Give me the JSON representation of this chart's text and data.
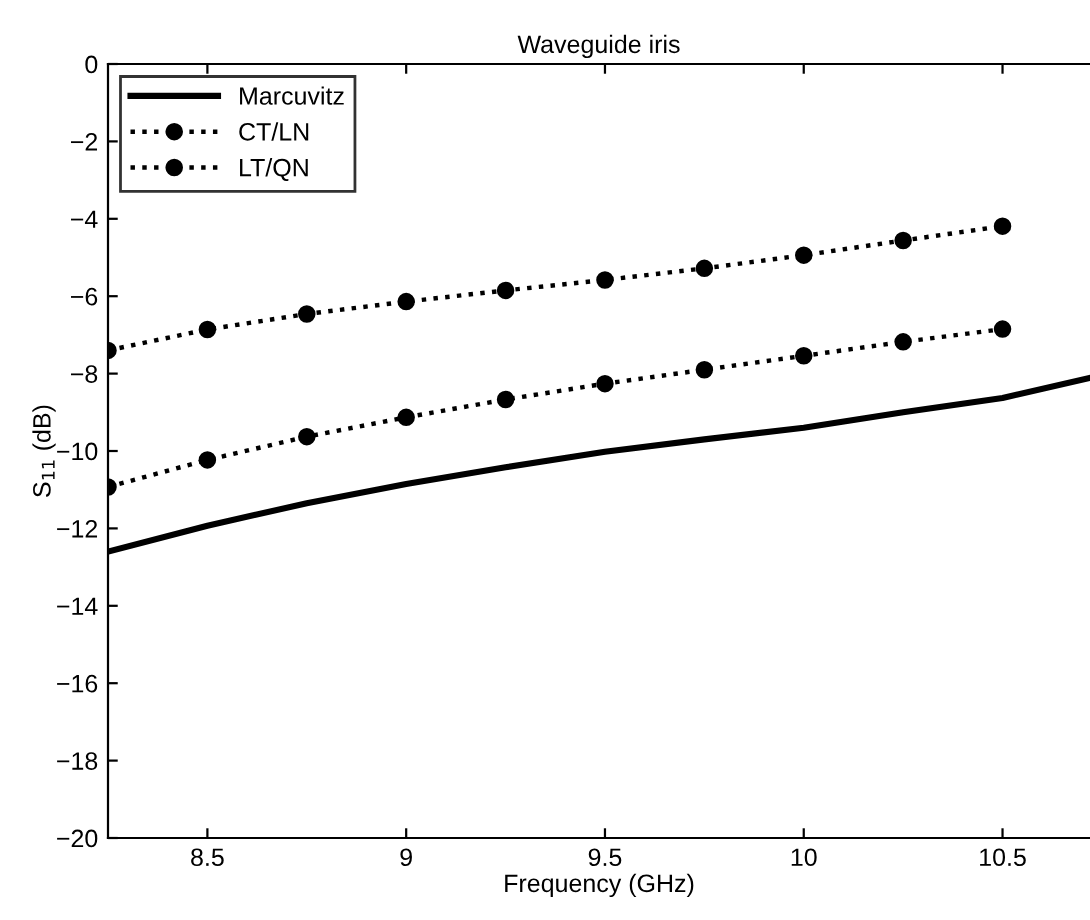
{
  "chart_data": {
    "type": "line",
    "title": "Waveguide iris",
    "xlabel": "Frequency (GHz)",
    "ylabel": "S$_{11}$ (dB)",
    "xlim": [
      8.25,
      10.72
    ],
    "xticks": [
      8.5,
      9,
      9.5,
      10,
      10.5
    ],
    "ylim": [
      -20,
      0
    ],
    "yticks": [
      -20,
      -18,
      -16,
      -14,
      -12,
      -10,
      -8,
      -6,
      -4,
      -2,
      0
    ],
    "grid": false,
    "legend": "top left",
    "series": [
      {
        "name": "Marcuvitz",
        "color": "#000000",
        "line_style": "solid",
        "marker": "none",
        "x": [
          8.25,
          8.5,
          8.75,
          9,
          9.25,
          9.5,
          9.75,
          10,
          10.25,
          10.5,
          10.72
        ],
        "values": [
          -12.6,
          -11.93,
          -11.35,
          -10.85,
          -10.42,
          -10.02,
          -9.7,
          -9.4,
          -9.0,
          -8.63,
          -8.11
        ]
      },
      {
        "name": "CT/LN",
        "color": "#000000",
        "line_style": "dotted",
        "marker": "circle",
        "x": [
          8.25,
          8.5,
          8.75,
          9,
          9.25,
          9.5,
          9.75,
          10,
          10.25,
          10.5
        ],
        "values": [
          -7.4,
          -6.86,
          -6.46,
          -6.14,
          -5.85,
          -5.58,
          -5.28,
          -4.94,
          -4.56,
          -4.19
        ]
      },
      {
        "name": "LT/QN",
        "color": "#000000",
        "line_style": "dotted",
        "marker": "circle",
        "x": [
          8.25,
          8.5,
          8.75,
          9,
          9.25,
          9.5,
          9.75,
          10,
          10.25,
          10.5
        ],
        "values": [
          -10.93,
          -10.23,
          -9.63,
          -9.13,
          -8.67,
          -8.26,
          -7.9,
          -7.54,
          -7.18,
          -6.85
        ]
      }
    ]
  }
}
